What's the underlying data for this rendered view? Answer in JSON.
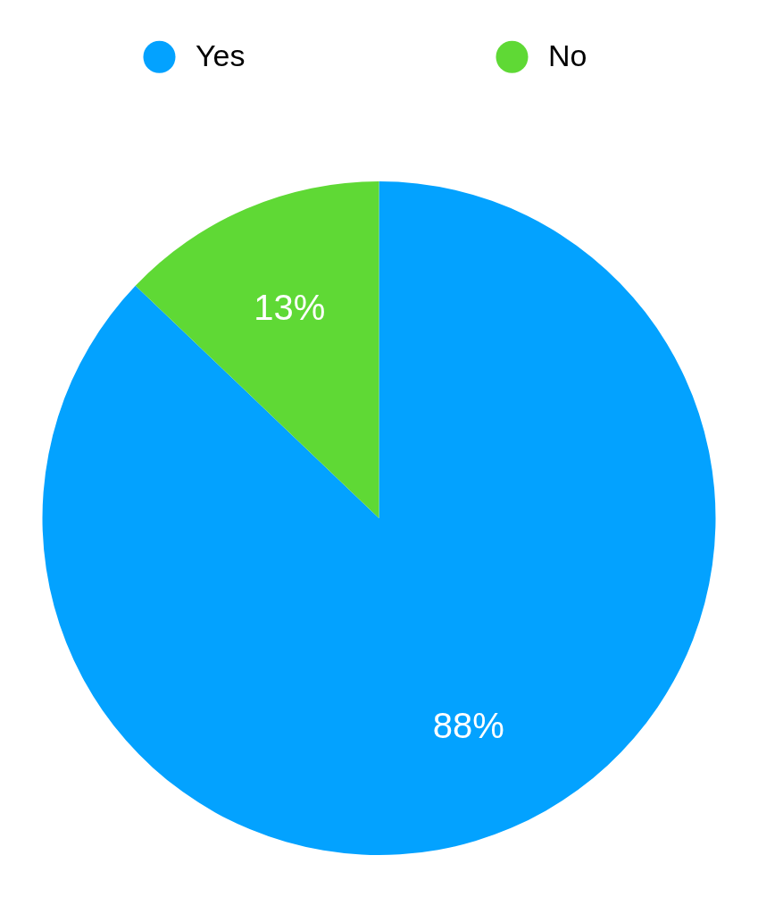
{
  "chart_data": {
    "type": "pie",
    "categories": [
      "Yes",
      "No"
    ],
    "values": [
      88,
      13
    ],
    "colors": [
      "#03a2ff",
      "#5fd935"
    ],
    "value_labels": [
      "88%",
      "13%"
    ],
    "legend": "top"
  }
}
